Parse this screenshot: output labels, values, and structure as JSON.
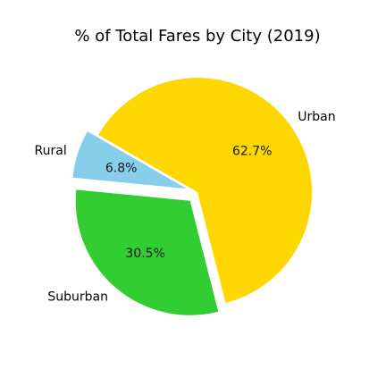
{
  "chart_data": {
    "type": "pie",
    "title": "% of Total Fares by City (2019)",
    "start_angle_deg": 150,
    "direction": "counterclockwise",
    "slices": [
      {
        "label": "Rural",
        "value": 6.8,
        "pct_label": "6.8%",
        "color": "#87ceeb",
        "explode": 0.1
      },
      {
        "label": "Suburban",
        "value": 30.5,
        "pct_label": "30.5%",
        "color": "#32cd32",
        "explode": 0.1
      },
      {
        "label": "Urban",
        "value": 62.7,
        "pct_label": "62.7%",
        "color": "#ffd700",
        "explode": 0.0
      }
    ]
  }
}
